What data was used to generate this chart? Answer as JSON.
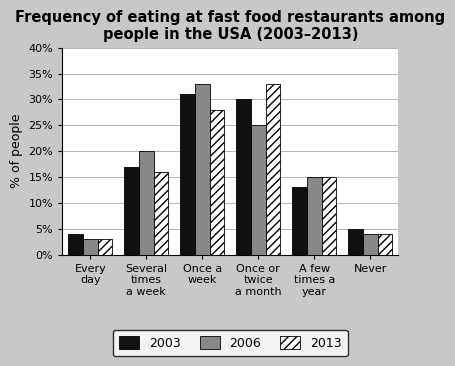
{
  "title": "Frequency of eating at fast food restaurants among\npeople in the USA (2003–2013)",
  "ylabel": "% of people",
  "categories": [
    "Every\nday",
    "Several\ntimes\na week",
    "Once a\nweek",
    "Once or\ntwice\na month",
    "A few\ntimes a\nyear",
    "Never"
  ],
  "series": {
    "2003": [
      4,
      17,
      31,
      30,
      13,
      5
    ],
    "2006": [
      3,
      20,
      33,
      25,
      15,
      4
    ],
    "2013": [
      3,
      16,
      28,
      33,
      15,
      4
    ]
  },
  "colors": {
    "2003": "#111111",
    "2006": "#888888",
    "2013": "#ffffff"
  },
  "hatch": {
    "2003": "",
    "2006": "",
    "2013": "////"
  },
  "ylim": [
    0,
    40
  ],
  "yticks": [
    0,
    5,
    10,
    15,
    20,
    25,
    30,
    35,
    40
  ],
  "ytick_labels": [
    "0%",
    "5%",
    "10%",
    "15%",
    "20%",
    "25%",
    "30%",
    "35%",
    "40%"
  ],
  "legend_labels": [
    "2003",
    "2006",
    "2013"
  ],
  "bar_width": 0.26,
  "background_color": "#c8c8c8",
  "plot_bg_color": "#ffffff",
  "title_fontsize": 10.5,
  "label_fontsize": 9,
  "tick_fontsize": 8,
  "legend_fontsize": 9
}
